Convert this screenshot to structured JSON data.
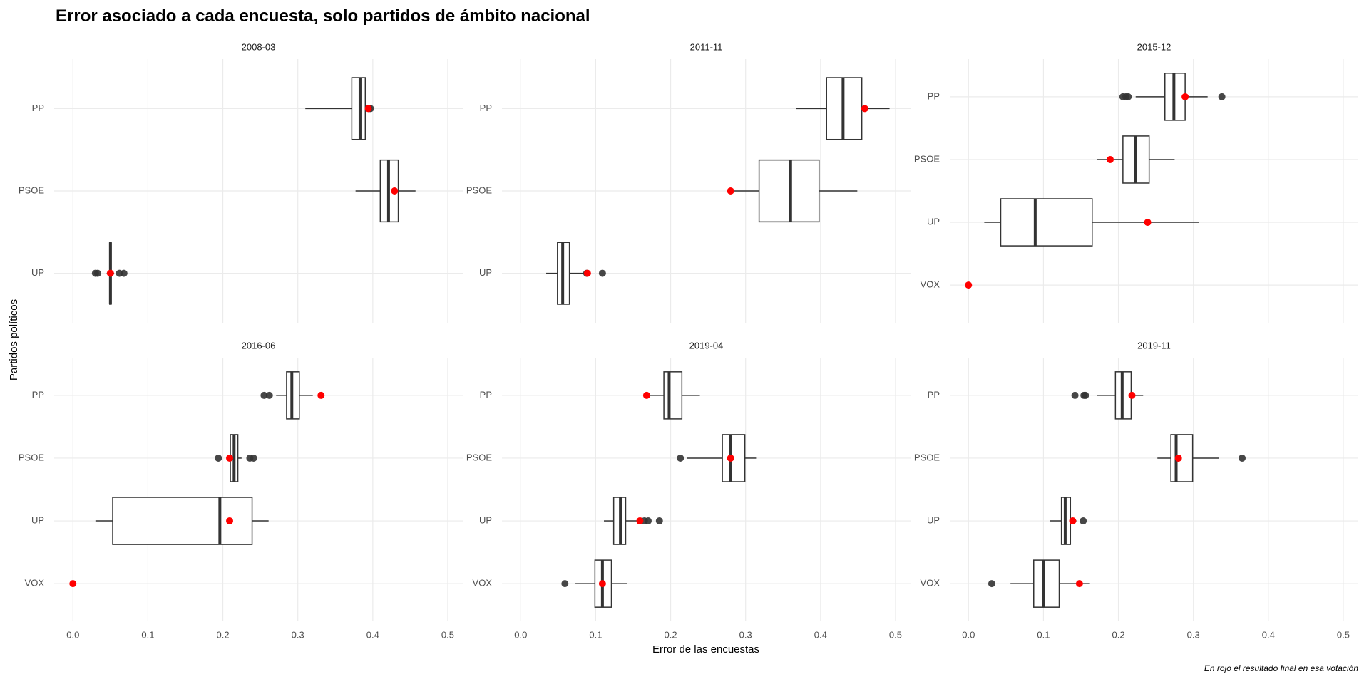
{
  "title": "Error asociado a cada encuesta, solo partidos de ámbito nacional",
  "x_label": "Error de las encuestas",
  "y_label": "Partidos políticos",
  "caption": "En rojo el resultado final en esa votación",
  "xlim": [
    -0.025,
    0.52
  ],
  "xticks": [
    {
      "value": 0,
      "label": "0.0"
    },
    0.1,
    0.2,
    0.3,
    0.4,
    0.5
  ],
  "grid": true,
  "chart_data": [
    {
      "type": "box",
      "title": "2008-03",
      "categories": [
        "PP",
        "PSOE",
        "UP"
      ],
      "whisker_low": [
        0.31,
        0.377,
        0.045
      ],
      "q1": [
        0.372,
        0.41,
        0.049
      ],
      "median": [
        0.383,
        0.421,
        0.05
      ],
      "q3": [
        0.39,
        0.434,
        0.051
      ],
      "whisker_high": [
        0.392,
        0.457,
        0.055
      ],
      "outliers": [
        [
          0.395,
          0.397
        ],
        [],
        [
          0.03,
          0.033,
          0.062,
          0.068
        ]
      ],
      "result": [
        0.394,
        0.429,
        0.05
      ],
      "box_color": "#333333",
      "result_color": "#ff0000"
    },
    {
      "type": "box",
      "title": "2011-11",
      "categories": [
        "PP",
        "PSOE",
        "UP"
      ],
      "whisker_low": [
        0.367,
        0.283,
        0.034
      ],
      "q1": [
        0.408,
        0.318,
        0.049
      ],
      "median": [
        0.43,
        0.36,
        0.056
      ],
      "q3": [
        0.455,
        0.398,
        0.065
      ],
      "whisker_high": [
        0.492,
        0.449,
        0.085
      ],
      "outliers": [
        [],
        [],
        [
          0.088,
          0.109
        ]
      ],
      "result": [
        0.459,
        0.28,
        0.089
      ],
      "box_color": "#333333",
      "result_color": "#ff0000"
    },
    {
      "type": "box",
      "title": "2015-12",
      "categories": [
        "PP",
        "PSOE",
        "UP",
        "VOX"
      ],
      "whisker_low": [
        0.223,
        0.171,
        0.021,
        null
      ],
      "q1": [
        0.262,
        0.206,
        0.043,
        null
      ],
      "median": [
        0.274,
        0.223,
        0.089,
        null
      ],
      "q3": [
        0.289,
        0.241,
        0.165,
        null
      ],
      "whisker_high": [
        0.319,
        0.275,
        0.307,
        null
      ],
      "outliers": [
        [
          0.206,
          0.21,
          0.213,
          0.338
        ],
        [],
        [],
        []
      ],
      "result": [
        0.289,
        0.189,
        0.239,
        0
      ],
      "box_color": "#333333",
      "result_color": "#ff0000"
    },
    {
      "type": "box",
      "title": "2016-06",
      "categories": [
        "PP",
        "PSOE",
        "UP",
        "VOX"
      ],
      "whisker_low": [
        0.271,
        0.21,
        0.03,
        null
      ],
      "q1": [
        0.285,
        0.21,
        0.053,
        null
      ],
      "median": [
        0.292,
        0.215,
        0.196,
        null
      ],
      "q3": [
        0.302,
        0.22,
        0.239,
        null
      ],
      "whisker_high": [
        0.32,
        0.225,
        0.261,
        null
      ],
      "outliers": [
        [
          0.255,
          0.262
        ],
        [
          0.194,
          0.236,
          0.241
        ],
        [],
        []
      ],
      "result": [
        0.331,
        0.209,
        0.209,
        0
      ],
      "box_color": "#333333",
      "result_color": "#ff0000"
    },
    {
      "type": "box",
      "title": "2019-04",
      "categories": [
        "PP",
        "PSOE",
        "UP",
        "VOX"
      ],
      "whisker_low": [
        0.172,
        0.222,
        0.111,
        0.073
      ],
      "q1": [
        0.191,
        0.269,
        0.124,
        0.099
      ],
      "median": [
        0.198,
        0.28,
        0.133,
        0.109
      ],
      "q3": [
        0.215,
        0.299,
        0.14,
        0.121
      ],
      "whisker_high": [
        0.239,
        0.314,
        0.16,
        0.142
      ],
      "outliers": [
        [],
        [
          0.213
        ],
        [
          0.165,
          0.17,
          0.185
        ],
        [
          0.059
        ]
      ],
      "result": [
        0.168,
        0.28,
        0.159,
        0.109
      ],
      "box_color": "#333333",
      "result_color": "#ff0000"
    },
    {
      "type": "box",
      "title": "2019-11",
      "categories": [
        "PP",
        "PSOE",
        "UP",
        "VOX"
      ],
      "whisker_low": [
        0.171,
        0.252,
        0.109,
        0.056
      ],
      "q1": [
        0.196,
        0.27,
        0.124,
        0.087
      ],
      "median": [
        0.205,
        0.277,
        0.129,
        0.1
      ],
      "q3": [
        0.217,
        0.299,
        0.136,
        0.121
      ],
      "whisker_high": [
        0.233,
        0.334,
        0.144,
        0.162
      ],
      "outliers": [
        [
          0.142,
          0.154,
          0.156
        ],
        [
          0.365
        ],
        [
          0.153
        ],
        [
          0.031
        ]
      ],
      "result": [
        0.218,
        0.28,
        0.139,
        0.148
      ],
      "box_color": "#333333",
      "result_color": "#ff0000"
    }
  ]
}
